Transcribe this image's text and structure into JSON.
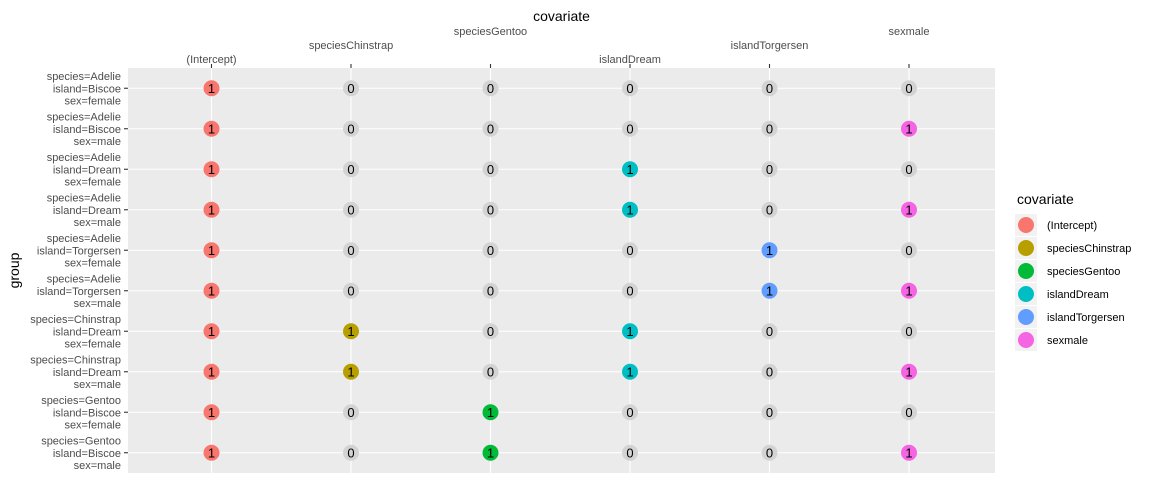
{
  "chart_data": {
    "type": "scatter",
    "title": "covariate",
    "xlabel": "covariate",
    "ylabel": "group",
    "x_position": "top",
    "grid": true,
    "legend_position": "right",
    "legend_title": "covariate",
    "covariates": [
      "(Intercept)",
      "speciesChinstrap",
      "speciesGentoo",
      "islandDream",
      "islandTorgersen",
      "sexmale"
    ],
    "colors": {
      "(Intercept)": "#F8766D",
      "speciesChinstrap": "#B79F00",
      "speciesGentoo": "#00BA38",
      "islandDream": "#00BFC4",
      "islandTorgersen": "#619CFF",
      "sexmale": "#F564E3",
      "zero": "#d3d3d3"
    },
    "groups": [
      {
        "lines": [
          "species=Adelie",
          "island=Biscoe",
          "sex=female"
        ],
        "values": [
          1,
          0,
          0,
          0,
          0,
          0
        ]
      },
      {
        "lines": [
          "species=Adelie",
          "island=Biscoe",
          "sex=male"
        ],
        "values": [
          1,
          0,
          0,
          0,
          0,
          1
        ]
      },
      {
        "lines": [
          "species=Adelie",
          "island=Dream",
          "sex=female"
        ],
        "values": [
          1,
          0,
          0,
          1,
          0,
          0
        ]
      },
      {
        "lines": [
          "species=Adelie",
          "island=Dream",
          "sex=male"
        ],
        "values": [
          1,
          0,
          0,
          1,
          0,
          1
        ]
      },
      {
        "lines": [
          "species=Adelie",
          "island=Torgersen",
          "sex=female"
        ],
        "values": [
          1,
          0,
          0,
          0,
          1,
          0
        ]
      },
      {
        "lines": [
          "species=Adelie",
          "island=Torgersen",
          "sex=male"
        ],
        "values": [
          1,
          0,
          0,
          0,
          1,
          1
        ]
      },
      {
        "lines": [
          "species=Chinstrap",
          "island=Dream",
          "sex=female"
        ],
        "values": [
          1,
          1,
          0,
          1,
          0,
          0
        ]
      },
      {
        "lines": [
          "species=Chinstrap",
          "island=Dream",
          "sex=male"
        ],
        "values": [
          1,
          1,
          0,
          1,
          0,
          1
        ]
      },
      {
        "lines": [
          "species=Gentoo",
          "island=Biscoe",
          "sex=female"
        ],
        "values": [
          1,
          0,
          1,
          0,
          0,
          0
        ]
      },
      {
        "lines": [
          "species=Gentoo",
          "island=Biscoe",
          "sex=male"
        ],
        "values": [
          1,
          0,
          1,
          0,
          0,
          1
        ]
      }
    ]
  }
}
